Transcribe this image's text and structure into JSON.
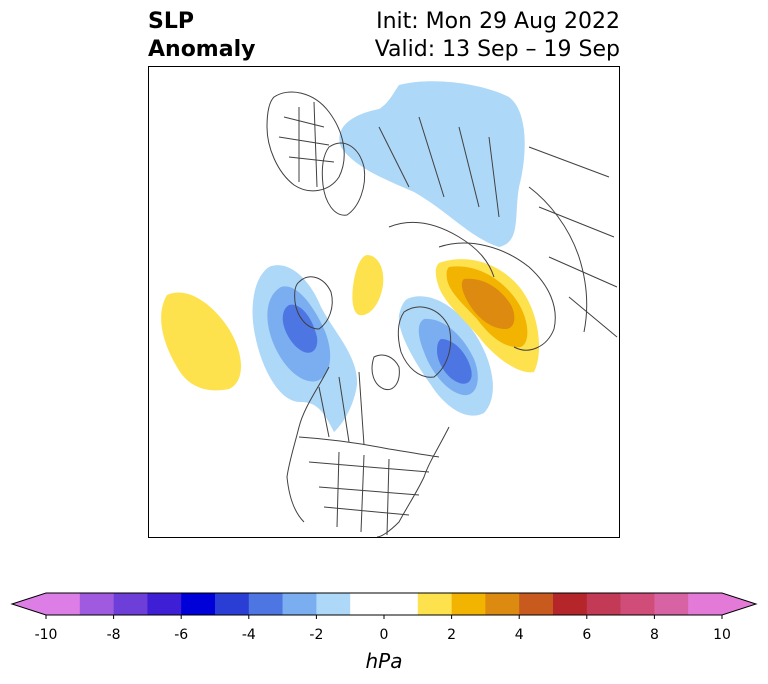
{
  "title": {
    "left_line1": "SLP",
    "left_line2": "Anomaly",
    "right_line1": "Init: Mon 29 Aug 2022",
    "right_line2": "Valid: 13 Sep – 19 Sep"
  },
  "colorbar": {
    "unit": "hPa",
    "tick_labels": [
      "-10",
      "-8",
      "-6",
      "-4",
      "-2",
      "0",
      "2",
      "4",
      "6",
      "8",
      "10"
    ],
    "levels": [
      -10,
      -9,
      -8,
      -7,
      -6,
      -5,
      -4,
      -3,
      -2,
      -1,
      1,
      2,
      3,
      4,
      5,
      6,
      7,
      8,
      9,
      10
    ],
    "colors": [
      "#dc7ee6",
      "#a05ae0",
      "#6e3ed8",
      "#3f1fd6",
      "#0000d8",
      "#2a3ed6",
      "#4e76e3",
      "#7aaef0",
      "#aed8f8",
      "#ffffff",
      "#fde24e",
      "#f2b400",
      "#dc8a10",
      "#c85a1e",
      "#b4262a",
      "#c23a55",
      "#cf4d78",
      "#d763a4",
      "#e47ad8"
    ],
    "extend_low_color": "#dc7ee6",
    "extend_high_color": "#e47ad8"
  },
  "map": {
    "projection": "north-polar-stereographic",
    "anomaly_colors": {
      "neg_light": "#aed8f8",
      "neg_mid": "#7aaef0",
      "neg_strong": "#4e76e3",
      "pos_light": "#fde24e",
      "pos_mid": "#f2b400",
      "pos_strong": "#dc8a10"
    },
    "coastline_color": "#404040"
  }
}
